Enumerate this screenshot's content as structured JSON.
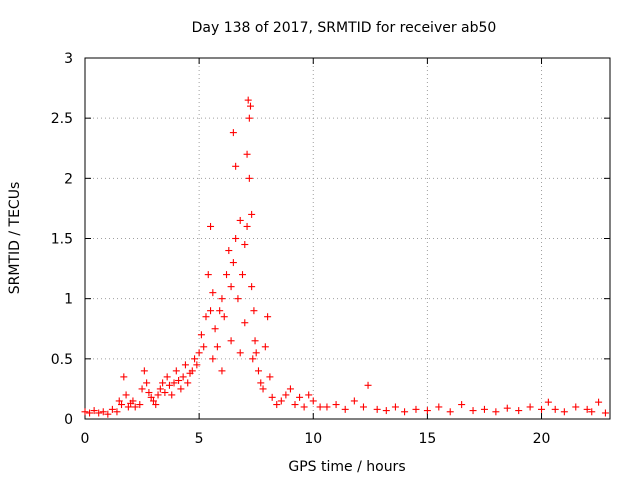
{
  "colors": {
    "series": "#ff0000",
    "axis": "#000000",
    "grid": "#a0a0a0",
    "background": "#ffffff"
  },
  "chart_data": {
    "type": "scatter",
    "title": "Day 138 of 2017, SRMTID for receiver ab50",
    "xlabel": "GPS time / hours",
    "ylabel": "SRMTID / TECUs",
    "xlim": [
      0,
      23
    ],
    "ylim": [
      0,
      3
    ],
    "x_ticks": [
      0,
      5,
      10,
      15,
      20
    ],
    "x_tick_labels": [
      "0",
      "5",
      "10",
      "15",
      "20"
    ],
    "y_ticks": [
      0,
      0.5,
      1,
      1.5,
      2,
      2.5,
      3
    ],
    "y_tick_labels": [
      "0",
      "0.5",
      "1",
      "1.5",
      "2",
      "2.5",
      "3"
    ],
    "grid": true,
    "marker": "plus",
    "series": [
      {
        "name": "SRMTID",
        "x": [
          0.0,
          0.2,
          0.4,
          0.6,
          0.8,
          1.0,
          1.2,
          1.4,
          1.5,
          1.6,
          1.7,
          1.8,
          1.9,
          2.0,
          2.1,
          2.2,
          2.4,
          2.5,
          2.6,
          2.7,
          2.8,
          2.9,
          3.0,
          3.1,
          3.2,
          3.3,
          3.4,
          3.5,
          3.6,
          3.7,
          3.8,
          3.9,
          4.0,
          4.1,
          4.2,
          4.3,
          4.4,
          4.5,
          4.6,
          4.7,
          4.8,
          4.9,
          5.0,
          5.1,
          5.2,
          5.3,
          5.4,
          5.5,
          5.5,
          5.6,
          5.6,
          5.7,
          5.8,
          5.9,
          6.0,
          6.0,
          6.1,
          6.2,
          6.3,
          6.4,
          6.4,
          6.5,
          6.5,
          6.6,
          6.6,
          6.7,
          6.8,
          6.8,
          6.9,
          7.0,
          7.0,
          7.1,
          7.1,
          7.15,
          7.2,
          7.2,
          7.25,
          7.3,
          7.3,
          7.35,
          7.4,
          7.45,
          7.5,
          7.6,
          7.7,
          7.8,
          7.9,
          8.0,
          8.1,
          8.2,
          8.4,
          8.6,
          8.8,
          9.0,
          9.2,
          9.4,
          9.6,
          9.8,
          10.0,
          10.3,
          10.6,
          11.0,
          11.4,
          11.8,
          12.2,
          12.4,
          12.8,
          13.2,
          13.6,
          14.0,
          14.5,
          15.0,
          15.5,
          16.0,
          16.5,
          17.0,
          17.5,
          18.0,
          18.5,
          19.0,
          19.5,
          20.0,
          20.3,
          20.6,
          21.0,
          21.5,
          22.0,
          22.2,
          22.5,
          22.8
        ],
        "y": [
          0.06,
          0.05,
          0.07,
          0.05,
          0.06,
          0.04,
          0.08,
          0.06,
          0.15,
          0.12,
          0.35,
          0.2,
          0.1,
          0.13,
          0.15,
          0.1,
          0.12,
          0.25,
          0.4,
          0.3,
          0.22,
          0.18,
          0.15,
          0.12,
          0.2,
          0.25,
          0.3,
          0.22,
          0.35,
          0.28,
          0.2,
          0.3,
          0.4,
          0.32,
          0.25,
          0.35,
          0.45,
          0.3,
          0.38,
          0.4,
          0.5,
          0.45,
          0.55,
          0.7,
          0.6,
          0.85,
          1.2,
          0.9,
          1.6,
          1.05,
          0.5,
          0.75,
          0.6,
          0.9,
          1.0,
          0.4,
          0.85,
          1.2,
          1.4,
          1.1,
          0.65,
          1.3,
          2.38,
          1.5,
          2.1,
          1.0,
          1.65,
          0.55,
          1.2,
          1.45,
          0.8,
          1.6,
          2.2,
          2.65,
          2.5,
          2.0,
          2.6,
          1.7,
          1.1,
          0.5,
          0.9,
          0.65,
          0.55,
          0.4,
          0.3,
          0.25,
          0.6,
          0.85,
          0.35,
          0.18,
          0.12,
          0.15,
          0.2,
          0.25,
          0.12,
          0.18,
          0.1,
          0.2,
          0.15,
          0.1,
          0.1,
          0.12,
          0.08,
          0.15,
          0.1,
          0.28,
          0.08,
          0.07,
          0.1,
          0.06,
          0.08,
          0.07,
          0.1,
          0.06,
          0.12,
          0.07,
          0.08,
          0.06,
          0.09,
          0.07,
          0.1,
          0.08,
          0.14,
          0.08,
          0.06,
          0.1,
          0.08,
          0.06,
          0.14,
          0.05
        ]
      }
    ]
  }
}
